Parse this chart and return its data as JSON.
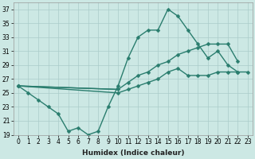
{
  "xlabel": "Humidex (Indice chaleur)",
  "x_values": [
    0,
    1,
    2,
    3,
    4,
    5,
    6,
    7,
    8,
    9,
    10,
    11,
    12,
    13,
    14,
    15,
    16,
    17,
    18,
    19,
    20,
    21,
    22,
    23
  ],
  "line1": [
    26,
    25,
    24,
    23,
    22,
    19.5,
    20,
    19,
    19.5,
    23,
    26,
    30,
    33,
    34,
    34,
    37,
    36,
    34,
    32,
    30,
    31,
    29,
    28,
    null
  ],
  "line2": [
    26,
    null,
    null,
    null,
    null,
    null,
    null,
    null,
    null,
    null,
    25.5,
    26.5,
    27.5,
    28,
    29,
    29.5,
    30.5,
    31,
    31.5,
    32,
    32,
    32,
    29.5,
    null
  ],
  "line3": [
    26,
    null,
    null,
    null,
    null,
    null,
    null,
    null,
    null,
    null,
    25,
    25.5,
    26,
    26.5,
    27,
    28,
    28.5,
    27.5,
    27.5,
    27.5,
    28,
    28,
    28,
    28
  ],
  "line_color": "#2a7d6e",
  "bg_color": "#cce8e4",
  "grid_color": "#aaccca",
  "ylim": [
    19,
    38
  ],
  "yticks": [
    19,
    21,
    23,
    25,
    27,
    29,
    31,
    33,
    35,
    37
  ],
  "xlim": [
    -0.5,
    23.5
  ],
  "marker": "D",
  "markersize": 2.5,
  "linewidth": 1.0,
  "tick_fontsize": 5.5,
  "label_fontsize": 6.5
}
